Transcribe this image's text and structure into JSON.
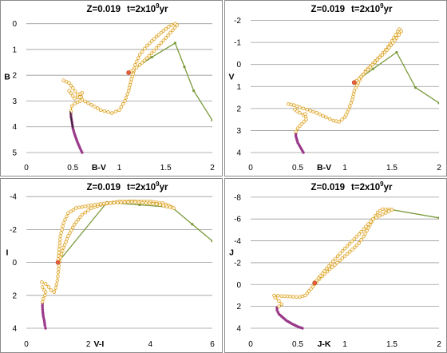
{
  "chart_data": [
    {
      "type": "line",
      "title_z": "Z=0.019",
      "title_t_prefix": "t=2x10",
      "title_t_exp": "9",
      "title_t_suffix": "yr",
      "xlabel": "B-V",
      "ylabel": "B",
      "xlim": [
        0,
        2
      ],
      "ylim": [
        5,
        -0.3
      ],
      "xticks": [
        0,
        0.5,
        1,
        1.5,
        2
      ],
      "xtick_labels": [
        "0",
        "0.5",
        "1",
        "1.5",
        "2"
      ],
      "yticks": [
        0,
        1,
        2,
        3,
        4,
        5
      ],
      "ytick_labels": [
        "0",
        "1",
        "2",
        "3",
        "4",
        "5"
      ],
      "grid": "horizontal",
      "colors": {
        "main": "#f0a800",
        "marker_edge": "#d08a00",
        "branch": "#7a9a3c",
        "lowms": "#9a3a8a",
        "dark": "#222222",
        "start": "#e8603a"
      },
      "ms_upper": [
        [
          0.4,
          2.2
        ],
        [
          0.46,
          2.3
        ],
        [
          0.5,
          2.5
        ],
        [
          0.55,
          2.75
        ],
        [
          0.6,
          2.95
        ],
        [
          0.7,
          3.15
        ],
        [
          0.8,
          3.35
        ],
        [
          0.92,
          3.47
        ],
        [
          1.0,
          3.35
        ],
        [
          1.06,
          3.0
        ],
        [
          1.1,
          2.6
        ],
        [
          1.13,
          2.15
        ],
        [
          1.15,
          1.95
        ],
        [
          1.17,
          1.6
        ],
        [
          1.22,
          1.2
        ],
        [
          1.3,
          0.85
        ],
        [
          1.4,
          0.5
        ],
        [
          1.5,
          0.2
        ],
        [
          1.56,
          0.05
        ],
        [
          1.6,
          0.0
        ],
        [
          1.62,
          0.06
        ],
        [
          1.55,
          0.35
        ],
        [
          1.45,
          0.75
        ],
        [
          1.32,
          1.25
        ],
        [
          1.22,
          1.6
        ],
        [
          1.15,
          1.8
        ],
        [
          1.1,
          1.9
        ]
      ],
      "hook": [
        [
          0.46,
          2.6
        ],
        [
          0.52,
          2.9
        ],
        [
          0.55,
          2.85
        ],
        [
          0.58,
          2.72
        ],
        [
          0.6,
          2.68
        ],
        [
          0.58,
          3.0
        ],
        [
          0.52,
          3.1
        ],
        [
          0.49,
          3.2
        ],
        [
          0.48,
          3.4
        ]
      ],
      "ms_lower": [
        [
          0.48,
          3.45
        ],
        [
          0.48,
          3.6
        ],
        [
          0.49,
          3.8
        ],
        [
          0.5,
          4.05
        ],
        [
          0.52,
          4.3
        ],
        [
          0.55,
          4.6
        ],
        [
          0.58,
          4.85
        ],
        [
          0.6,
          5.0
        ]
      ],
      "branch": [
        [
          1.1,
          1.9
        ],
        [
          1.35,
          1.3
        ],
        [
          1.6,
          0.75
        ],
        [
          1.8,
          2.6
        ],
        [
          2.0,
          3.75
        ]
      ]
    },
    {
      "type": "line",
      "title_z": "Z=0.019",
      "title_t_prefix": "t=2x10",
      "title_t_exp": "9",
      "title_t_suffix": "yr",
      "xlabel": "B-V",
      "ylabel": "V",
      "xlim": [
        0,
        2
      ],
      "ylim": [
        4,
        -2.2
      ],
      "xticks": [
        0,
        0.5,
        1,
        1.5,
        2
      ],
      "xtick_labels": [
        "0",
        "0.5",
        "1",
        "1.5",
        "2"
      ],
      "yticks": [
        -2,
        -1,
        0,
        1,
        2,
        3,
        4
      ],
      "ytick_labels": [
        "-2",
        "-1",
        "0",
        "1",
        "2",
        "3",
        "4"
      ],
      "grid": "horizontal",
      "colors": {
        "main": "#f0a800",
        "marker_edge": "#d08a00",
        "branch": "#7a9a3c",
        "lowms": "#9a3a8a",
        "dark": "#222222",
        "start": "#e8603a"
      },
      "ms_upper": [
        [
          0.4,
          1.8
        ],
        [
          0.46,
          1.85
        ],
        [
          0.52,
          1.95
        ],
        [
          0.6,
          2.05
        ],
        [
          0.7,
          2.2
        ],
        [
          0.8,
          2.4
        ],
        [
          0.88,
          2.55
        ],
        [
          0.94,
          2.6
        ],
        [
          1.0,
          2.4
        ],
        [
          1.04,
          2.05
        ],
        [
          1.08,
          1.6
        ],
        [
          1.1,
          1.2
        ],
        [
          1.13,
          0.95
        ],
        [
          1.17,
          0.6
        ],
        [
          1.22,
          0.3
        ],
        [
          1.3,
          -0.05
        ],
        [
          1.38,
          -0.4
        ],
        [
          1.46,
          -0.8
        ],
        [
          1.52,
          -1.2
        ],
        [
          1.56,
          -1.5
        ],
        [
          1.58,
          -1.6
        ],
        [
          1.6,
          -1.5
        ],
        [
          1.55,
          -1.2
        ],
        [
          1.45,
          -0.65
        ],
        [
          1.32,
          -0.1
        ],
        [
          1.22,
          0.35
        ],
        [
          1.15,
          0.65
        ],
        [
          1.1,
          0.82
        ]
      ],
      "hook": [
        [
          0.47,
          2.05
        ],
        [
          0.52,
          2.2
        ],
        [
          0.56,
          2.3
        ],
        [
          0.58,
          2.25
        ],
        [
          0.59,
          2.5
        ],
        [
          0.54,
          2.7
        ],
        [
          0.5,
          2.9
        ],
        [
          0.48,
          3.05
        ]
      ],
      "ms_lower": [
        [
          0.48,
          3.1
        ],
        [
          0.48,
          3.25
        ],
        [
          0.49,
          3.4
        ],
        [
          0.5,
          3.55
        ],
        [
          0.52,
          3.7
        ],
        [
          0.54,
          3.85
        ],
        [
          0.56,
          4.0
        ]
      ],
      "branch": [
        [
          1.1,
          0.82
        ],
        [
          1.3,
          0.2
        ],
        [
          1.55,
          -0.55
        ],
        [
          1.75,
          1.05
        ],
        [
          2.0,
          1.75
        ]
      ]
    },
    {
      "type": "line",
      "title_z": "Z=0.019",
      "title_t_prefix": "t=2x10",
      "title_t_exp": "9",
      "title_t_suffix": "yr",
      "xlabel": "V-I",
      "ylabel": "I",
      "xlim": [
        0,
        6
      ],
      "ylim": [
        4,
        -4.3
      ],
      "xticks": [
        0,
        2,
        4,
        6
      ],
      "xtick_labels": [
        "0",
        "2",
        "4",
        "6"
      ],
      "yticks": [
        -4,
        -2,
        0,
        2,
        4
      ],
      "ytick_labels": [
        "-4",
        "-2",
        "0",
        "2",
        "4"
      ],
      "grid": "horizontal",
      "colors": {
        "main": "#f0a800",
        "marker_edge": "#d08a00",
        "branch": "#7a9a3c",
        "lowms": "#9a3a8a",
        "dark": "#222222",
        "start": "#e8603a"
      },
      "ms_upper": [
        [
          0.5,
          1.2
        ],
        [
          0.62,
          1.3
        ],
        [
          0.72,
          1.5
        ],
        [
          0.8,
          1.7
        ],
        [
          0.9,
          1.8
        ],
        [
          0.95,
          1.55
        ],
        [
          1.0,
          1.1
        ],
        [
          1.03,
          0.6
        ],
        [
          1.05,
          0.2
        ],
        [
          1.1,
          -0.3
        ],
        [
          1.2,
          -0.9
        ],
        [
          1.35,
          -1.6
        ],
        [
          1.55,
          -2.3
        ],
        [
          1.8,
          -2.9
        ],
        [
          2.1,
          -3.3
        ],
        [
          2.5,
          -3.55
        ],
        [
          3.0,
          -3.7
        ],
        [
          3.5,
          -3.72
        ],
        [
          4.0,
          -3.7
        ],
        [
          4.4,
          -3.6
        ],
        [
          4.6,
          -3.45
        ],
        [
          4.75,
          -3.3
        ]
      ],
      "hook": [
        [
          0.52,
          1.5
        ],
        [
          0.58,
          1.7
        ],
        [
          0.62,
          1.8
        ],
        [
          0.6,
          2.0
        ],
        [
          0.55,
          2.2
        ],
        [
          0.52,
          2.4
        ]
      ],
      "ms_lower": [
        [
          0.52,
          2.5
        ],
        [
          0.52,
          2.75
        ],
        [
          0.53,
          3.0
        ],
        [
          0.55,
          3.3
        ],
        [
          0.58,
          3.55
        ],
        [
          0.6,
          3.85
        ],
        [
          0.62,
          4.0
        ]
      ],
      "return": [
        [
          4.75,
          -3.3
        ],
        [
          4.2,
          -3.55
        ],
        [
          3.4,
          -3.68
        ],
        [
          2.6,
          -3.6
        ],
        [
          2.0,
          -3.45
        ],
        [
          1.6,
          -3.3
        ],
        [
          1.35,
          -3.0
        ],
        [
          1.2,
          -2.4
        ],
        [
          1.1,
          -1.6
        ],
        [
          1.05,
          -0.6
        ],
        [
          1.02,
          0.0
        ]
      ],
      "branch": [
        [
          1.02,
          0.0
        ],
        [
          2.6,
          -3.65
        ],
        [
          4.7,
          -3.35
        ],
        [
          6.0,
          -1.3
        ]
      ]
    },
    {
      "type": "line",
      "title_z": "Z=0.019",
      "title_t_prefix": "t=2x10",
      "title_t_exp": "9",
      "title_t_suffix": "yr",
      "xlabel": "J-K",
      "ylabel": "J",
      "xlim": [
        0,
        2
      ],
      "ylim": [
        4,
        -8.5
      ],
      "xticks": [
        0,
        0.5,
        1,
        1.5,
        2
      ],
      "xtick_labels": [
        "0",
        "0.5",
        "1",
        "1.5",
        "2"
      ],
      "yticks": [
        -8,
        -6,
        -4,
        -2,
        0,
        2,
        4
      ],
      "ytick_labels": [
        "-8",
        "-6",
        "-4",
        "-2",
        "0",
        "2",
        "4"
      ],
      "grid": "horizontal",
      "colors": {
        "main": "#f0a800",
        "marker_edge": "#d08a00",
        "branch": "#7a9a3c",
        "lowms": "#9a3a8a",
        "dark": "#222222",
        "start": "#e8603a"
      },
      "ms_upper": [
        [
          0.25,
          1.0
        ],
        [
          0.33,
          1.05
        ],
        [
          0.42,
          1.1
        ],
        [
          0.52,
          1.15
        ],
        [
          0.58,
          1.0
        ],
        [
          0.62,
          0.6
        ],
        [
          0.66,
          0.2
        ],
        [
          0.7,
          -0.25
        ],
        [
          0.76,
          -0.75
        ],
        [
          0.84,
          -1.4
        ],
        [
          0.92,
          -2.0
        ],
        [
          1.0,
          -2.6
        ],
        [
          1.08,
          -3.2
        ],
        [
          1.15,
          -3.8
        ],
        [
          1.2,
          -4.4
        ],
        [
          1.25,
          -5.2
        ],
        [
          1.3,
          -6.0
        ],
        [
          1.35,
          -6.6
        ],
        [
          1.4,
          -6.9
        ],
        [
          1.5,
          -6.85
        ]
      ],
      "hook": [
        [
          0.26,
          1.2
        ],
        [
          0.3,
          1.5
        ],
        [
          0.33,
          1.8
        ],
        [
          0.3,
          2.0
        ]
      ],
      "ms_lower": [
        [
          0.28,
          2.1
        ],
        [
          0.28,
          2.35
        ],
        [
          0.3,
          2.7
        ],
        [
          0.34,
          3.0
        ],
        [
          0.38,
          3.3
        ],
        [
          0.44,
          3.6
        ],
        [
          0.5,
          3.85
        ],
        [
          0.55,
          4.0
        ]
      ],
      "return": [
        [
          1.5,
          -6.85
        ],
        [
          1.3,
          -6.0
        ],
        [
          1.15,
          -4.6
        ],
        [
          1.0,
          -3.3
        ],
        [
          0.85,
          -1.9
        ],
        [
          0.74,
          -0.8
        ],
        [
          0.68,
          -0.15
        ]
      ],
      "branch": [
        [
          1.5,
          -6.85
        ],
        [
          2.0,
          -6.1
        ]
      ]
    }
  ]
}
